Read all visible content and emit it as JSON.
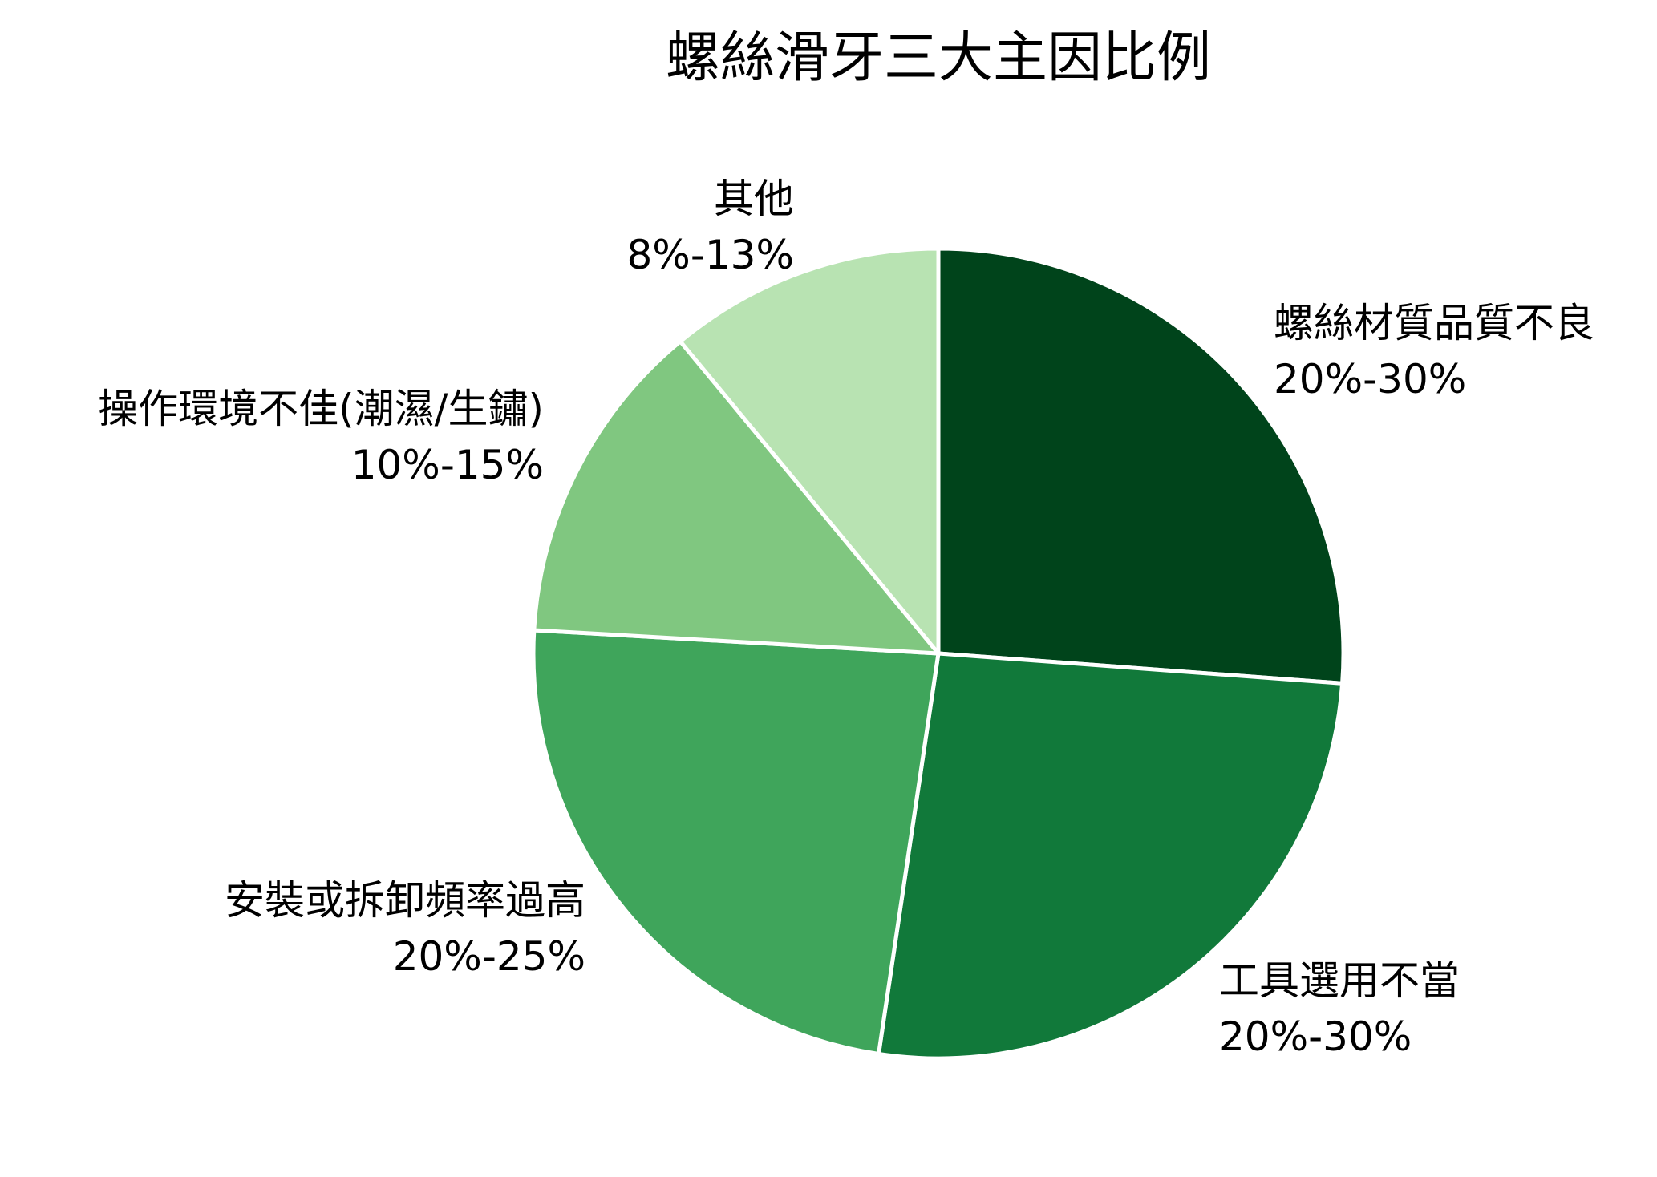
{
  "chart_data": {
    "type": "pie",
    "title": "螺絲滑牙三大主因比例",
    "slices": [
      {
        "label": "螺絲材質品質不良",
        "range_label": "20%-30%",
        "value": 25,
        "color": "#00441b"
      },
      {
        "label": "工具選用不當",
        "range_label": "20%-30%",
        "value": 25,
        "color": "#11793a"
      },
      {
        "label": "安裝或拆卸頻率過高",
        "range_label": "20%-25%",
        "value": 22.5,
        "color": "#3fa55b"
      },
      {
        "label": "操作環境不佳(潮濕/生鏽)",
        "range_label": "10%-15%",
        "value": 12.5,
        "color": "#80c780"
      },
      {
        "label": "其他",
        "range_label": "8%-13%",
        "value": 10.5,
        "color": "#b8e3b2"
      }
    ],
    "start_angle": "12 o'clock",
    "direction": "clockwise",
    "legend": "none",
    "slice_border_color": "#ffffff"
  }
}
